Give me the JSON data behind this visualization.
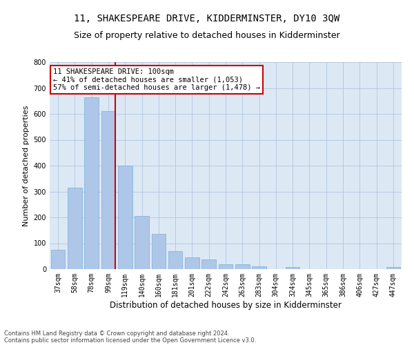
{
  "title": "11, SHAKESPEARE DRIVE, KIDDERMINSTER, DY10 3QW",
  "subtitle": "Size of property relative to detached houses in Kidderminster",
  "xlabel": "Distribution of detached houses by size in Kidderminster",
  "ylabel": "Number of detached properties",
  "footnote1": "Contains HM Land Registry data © Crown copyright and database right 2024.",
  "footnote2": "Contains public sector information licensed under the Open Government Licence v3.0.",
  "categories": [
    "37sqm",
    "58sqm",
    "78sqm",
    "99sqm",
    "119sqm",
    "140sqm",
    "160sqm",
    "181sqm",
    "201sqm",
    "222sqm",
    "242sqm",
    "263sqm",
    "283sqm",
    "304sqm",
    "324sqm",
    "345sqm",
    "365sqm",
    "386sqm",
    "406sqm",
    "427sqm",
    "447sqm"
  ],
  "values": [
    75,
    315,
    665,
    610,
    400,
    205,
    135,
    70,
    45,
    38,
    20,
    20,
    12,
    0,
    8,
    0,
    0,
    0,
    0,
    0,
    8
  ],
  "bar_color": "#aec6e8",
  "bar_edge_color": "#7aaed6",
  "red_line_index": 3,
  "red_line_color": "#cc0000",
  "annotation_text": "11 SHAKESPEARE DRIVE: 100sqm\n← 41% of detached houses are smaller (1,053)\n57% of semi-detached houses are larger (1,478) →",
  "annotation_box_color": "#cc0000",
  "ylim": [
    0,
    800
  ],
  "yticks": [
    0,
    100,
    200,
    300,
    400,
    500,
    600,
    700,
    800
  ],
  "grid_color": "#b0c4de",
  "background_color": "#dce9f5",
  "title_fontsize": 10,
  "subtitle_fontsize": 9,
  "xlabel_fontsize": 8.5,
  "ylabel_fontsize": 8,
  "tick_fontsize": 7,
  "annotation_fontsize": 7.5,
  "footnote_fontsize": 6
}
